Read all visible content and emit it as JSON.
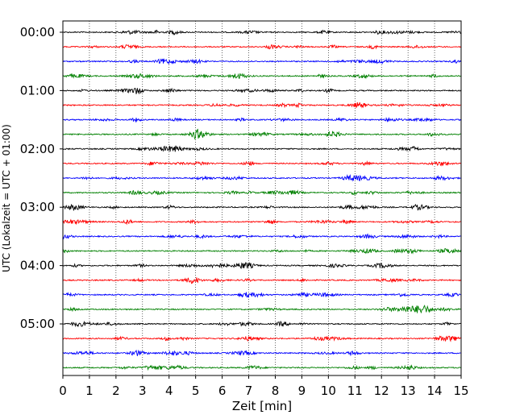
{
  "chart_data": {
    "type": "line",
    "title": "",
    "xlabel": "Zeit  [min]",
    "ylabel": "UTC (Lokalzeit = UTC + 01:00)",
    "xlim": [
      0,
      15
    ],
    "xticks": [
      "0",
      "1",
      "2",
      "3",
      "4",
      "5",
      "6",
      "7",
      "8",
      "9",
      "10",
      "11",
      "12",
      "13",
      "14",
      "15"
    ],
    "yticks": [
      "00:00",
      "01:00",
      "02:00",
      "03:00",
      "04:00",
      "05:00"
    ],
    "grid": "vertical dotted lines at each minute",
    "trace_interval_minutes": 15,
    "trace_count": 24,
    "color_cycle": [
      "#000000",
      "#ff0000",
      "#0000ff",
      "#008000"
    ],
    "traces": [
      {
        "start": "00:00",
        "color": "#000000"
      },
      {
        "start": "00:15",
        "color": "#ff0000"
      },
      {
        "start": "00:30",
        "color": "#0000ff"
      },
      {
        "start": "00:45",
        "color": "#008000"
      },
      {
        "start": "01:00",
        "color": "#000000"
      },
      {
        "start": "01:15",
        "color": "#ff0000"
      },
      {
        "start": "01:30",
        "color": "#0000ff"
      },
      {
        "start": "01:45",
        "color": "#008000"
      },
      {
        "start": "02:00",
        "color": "#000000"
      },
      {
        "start": "02:15",
        "color": "#ff0000"
      },
      {
        "start": "02:30",
        "color": "#0000ff"
      },
      {
        "start": "02:45",
        "color": "#008000"
      },
      {
        "start": "03:00",
        "color": "#000000"
      },
      {
        "start": "03:15",
        "color": "#ff0000"
      },
      {
        "start": "03:30",
        "color": "#0000ff"
      },
      {
        "start": "03:45",
        "color": "#008000"
      },
      {
        "start": "04:00",
        "color": "#000000"
      },
      {
        "start": "04:15",
        "color": "#ff0000"
      },
      {
        "start": "04:30",
        "color": "#0000ff"
      },
      {
        "start": "04:45",
        "color": "#008000"
      },
      {
        "start": "05:00",
        "color": "#000000"
      },
      {
        "start": "05:15",
        "color": "#ff0000"
      },
      {
        "start": "05:30",
        "color": "#0000ff"
      },
      {
        "start": "05:45",
        "color": "#008000"
      }
    ]
  }
}
